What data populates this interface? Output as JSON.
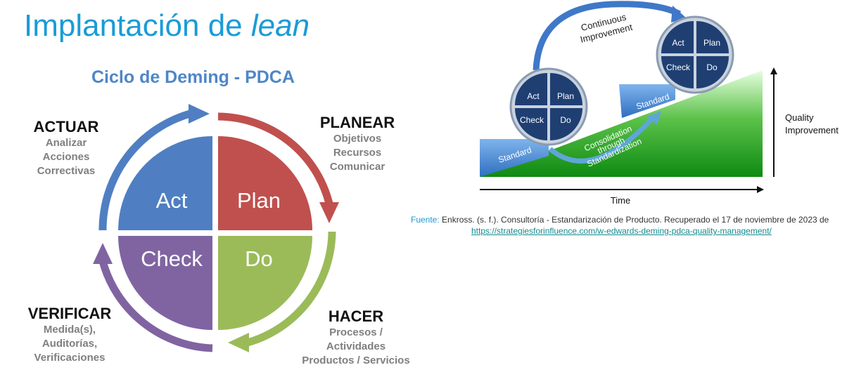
{
  "title": {
    "main": "Implantación de ",
    "italic": "lean"
  },
  "subtitle": "Ciclo de Deming - PDCA",
  "quadrants": {
    "act": "Act",
    "plan": "Plan",
    "check": "Check",
    "do": "Do"
  },
  "phases": {
    "actuar": {
      "title": "ACTUAR",
      "lines": [
        "Analizar",
        "Acciones",
        "Correctivas"
      ]
    },
    "planear": {
      "title": "PLANEAR",
      "lines": [
        "Objetivos",
        "Recursos",
        "Comunicar"
      ]
    },
    "verificar": {
      "title": "VERIFICAR",
      "lines": [
        "Medida(s),",
        "Auditorías,",
        "Verificaciones"
      ]
    },
    "hacer": {
      "title": "HACER",
      "lines": [
        "Procesos /",
        "Actividades",
        "Productos / Servicios"
      ]
    }
  },
  "right_diagram": {
    "continuous_improvement": [
      "Continuous",
      "Improvement"
    ],
    "small_labels": {
      "act": "Act",
      "plan": "Plan",
      "check": "Check",
      "do": "Do"
    },
    "standard": "Standard",
    "consolidation": [
      "Consolidation",
      "through",
      "Standardization"
    ],
    "quality_improvement": [
      "Quality",
      "Improvement"
    ],
    "time": "Time"
  },
  "source": {
    "label": "Fuente:",
    "text": " Enkross. (s. f.). Consultoría - Estandarización de Producto. Recuperado el 17 de noviembre de 2023 de",
    "url": "https://strategiesforinfluence.com/w-edwards-deming-pdca-quality-management/"
  },
  "colors": {
    "title": "#1a9bd7",
    "subtitle": "#4f86c6",
    "act": "#4f7fc2",
    "plan": "#c0504d",
    "check": "#8064a2",
    "do": "#9bbb59",
    "dark_blue": "#1f3f73",
    "green": "#1f9a1f"
  }
}
